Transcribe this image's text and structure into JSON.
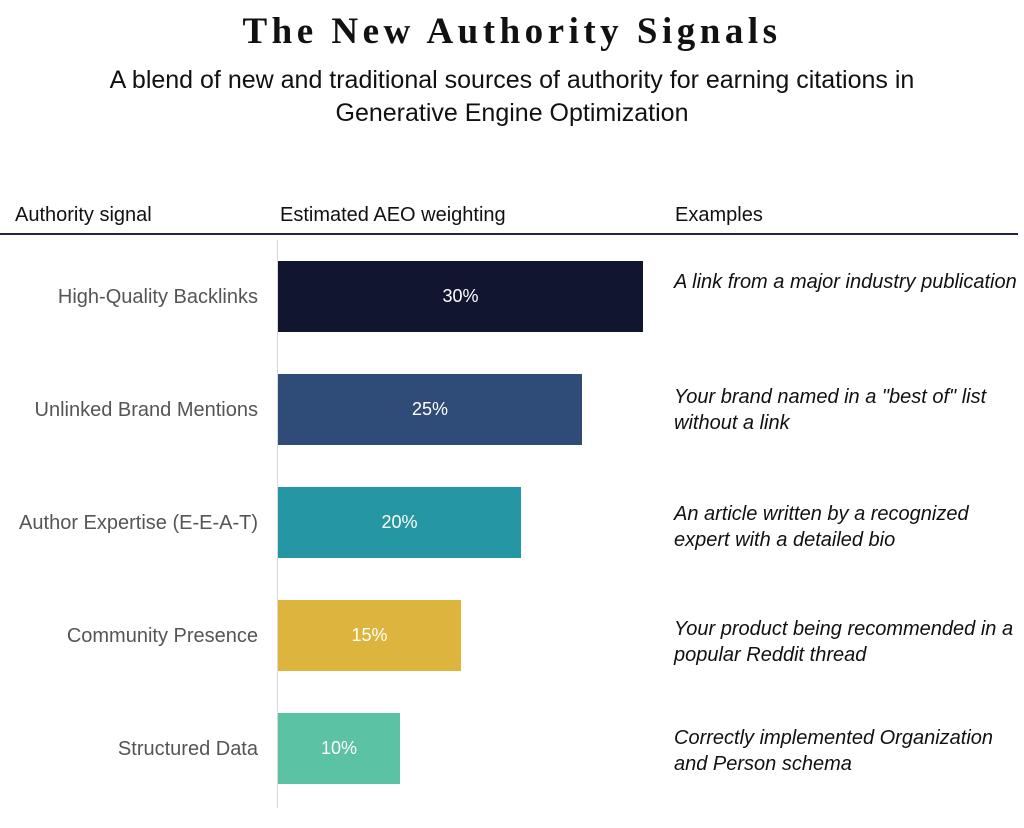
{
  "header": {
    "title": "The New Authority Signals",
    "subtitle": "A blend of new and traditional sources of authority for earning citations in Generative Engine Optimization"
  },
  "columns": {
    "signal": "Authority signal",
    "weighting": "Estimated AEO weighting",
    "examples": "Examples"
  },
  "rows": [
    {
      "example": "A link from a major industry publication"
    },
    {
      "example": "Your brand named in a \"best of\" list without a link"
    },
    {
      "example": "An article written by a recognized expert with a detailed bio"
    },
    {
      "example": "Your product being recommended in a popular Reddit thread"
    },
    {
      "example": "Correctly implemented Organization and Person schema"
    }
  ],
  "chart_data": {
    "type": "bar",
    "orientation": "horizontal",
    "title": "The New Authority Signals",
    "xlabel": "Estimated AEO weighting",
    "ylabel": "Authority signal",
    "categories": [
      "High-Quality Backlinks",
      "Unlinked Brand Mentions",
      "Author Expertise (E-E-A-T)",
      "Community Presence",
      "Structured Data"
    ],
    "values": [
      30,
      25,
      20,
      15,
      10
    ],
    "value_labels": [
      "30%",
      "25%",
      "20%",
      "15%",
      "10%"
    ],
    "colors": [
      "#121530",
      "#2f4b78",
      "#2596a3",
      "#ddb43d",
      "#5cc2a4"
    ],
    "xlim": [
      0,
      30
    ],
    "grid": false,
    "legend": "none"
  }
}
